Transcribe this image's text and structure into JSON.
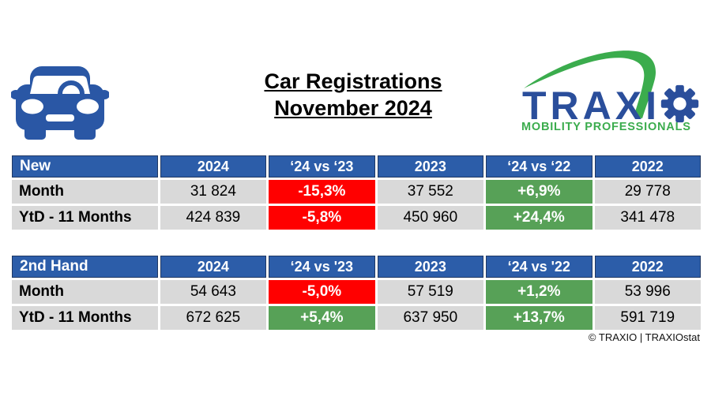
{
  "title": {
    "line1": "Car Registrations",
    "line2": "November 2024"
  },
  "logo": {
    "name": "TRAXIO",
    "letters": "TRAXI",
    "tagline": "MOBILITY PROFESSIONALS"
  },
  "icons": {
    "car": "car-icon",
    "gear": "gear-icon",
    "swoosh": "swoosh-icon"
  },
  "colors": {
    "header_blue": "#2C5DA9",
    "header_border": "#1F3864",
    "row_gray": "#D9D9D9",
    "negative_red": "#FF0000",
    "positive_green": "#57A157",
    "car_blue": "#2A57A5",
    "logo_blue": "#2A4E9B",
    "logo_green": "#3BAC4D"
  },
  "tables": [
    {
      "title": "New",
      "columns": [
        "2024",
        "‘24 vs ‘23",
        "2023",
        "‘24 vs ‘22",
        "2022"
      ],
      "rows": [
        {
          "label": "Month",
          "cells": [
            {
              "text": "31 824",
              "type": "plain"
            },
            {
              "text": "-15,3%",
              "type": "negative"
            },
            {
              "text": "37 552",
              "type": "plain"
            },
            {
              "text": "+6,9%",
              "type": "positive"
            },
            {
              "text": "29 778",
              "type": "plain"
            }
          ]
        },
        {
          "label": "YtD - 11 Months",
          "cells": [
            {
              "text": "424 839",
              "type": "plain"
            },
            {
              "text": "-5,8%",
              "type": "negative"
            },
            {
              "text": "450 960",
              "type": "plain"
            },
            {
              "text": "+24,4%",
              "type": "positive"
            },
            {
              "text": "341 478",
              "type": "plain"
            }
          ]
        }
      ]
    },
    {
      "title": "2nd Hand",
      "columns": [
        "2024",
        "‘24 vs '23",
        "2023",
        "‘24 vs '22",
        "2022"
      ],
      "rows": [
        {
          "label": "Month",
          "cells": [
            {
              "text": "54 643",
              "type": "plain"
            },
            {
              "text": "-5,0%",
              "type": "negative"
            },
            {
              "text": "57 519",
              "type": "plain"
            },
            {
              "text": "+1,2%",
              "type": "positive"
            },
            {
              "text": "53 996",
              "type": "plain"
            }
          ]
        },
        {
          "label": "YtD - 11 Months",
          "cells": [
            {
              "text": "672 625",
              "type": "plain"
            },
            {
              "text": "+5,4%",
              "type": "positive"
            },
            {
              "text": "637 950",
              "type": "plain"
            },
            {
              "text": "+13,7%",
              "type": "positive"
            },
            {
              "text": "591 719",
              "type": "plain"
            }
          ]
        }
      ]
    }
  ],
  "chart_data": [
    {
      "type": "table",
      "title": "New",
      "columns": [
        "",
        "2024",
        "‘24 vs ‘23",
        "2023",
        "‘24 vs ‘22",
        "2022"
      ],
      "rows": [
        [
          "Month",
          "31 824",
          "-15,3%",
          "37 552",
          "+6,9%",
          "29 778"
        ],
        [
          "YtD - 11 Months",
          "424 839",
          "-5,8%",
          "450 960",
          "+24,4%",
          "341 478"
        ]
      ]
    },
    {
      "type": "table",
      "title": "2nd Hand",
      "columns": [
        "",
        "2024",
        "‘24 vs '23",
        "2023",
        "‘24 vs '22",
        "2022"
      ],
      "rows": [
        [
          "Month",
          "54 643",
          "-5,0%",
          "57 519",
          "+1,2%",
          "53 996"
        ],
        [
          "YtD - 11 Months",
          "672 625",
          "+5,4%",
          "637 950",
          "+13,7%",
          "591 719"
        ]
      ]
    }
  ],
  "footer": {
    "credit": "© TRAXIO | TRAXIOstat"
  }
}
